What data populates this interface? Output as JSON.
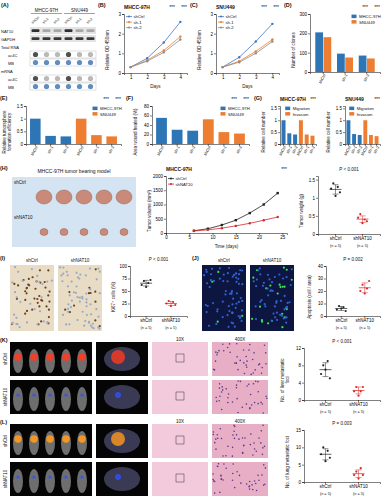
{
  "chart_data": [
    {
      "type": "line",
      "title": "MHCC-97H",
      "y_label": "Relative OD 450nm",
      "x_label": "Days",
      "x": [
        1,
        2,
        3,
        4
      ],
      "xlim": [
        0.6,
        4.4
      ],
      "xticks": [
        1,
        2,
        3,
        4
      ],
      "ylim": [
        0,
        3
      ],
      "yticks": [
        0,
        1,
        2,
        3
      ],
      "marker": "circle",
      "legend": "top-left",
      "annotations": [
        "***",
        "***"
      ],
      "series": [
        {
          "name": "shCtrl",
          "color": "#4472c4",
          "values": [
            0.3,
            0.75,
            1.55,
            2.6
          ]
        },
        {
          "name": "sh-1",
          "color": "#ed7d31",
          "values": [
            0.3,
            0.65,
            1.15,
            1.85
          ]
        },
        {
          "name": "sh-2",
          "color": "#8c8c8c",
          "values": [
            0.3,
            0.6,
            1.05,
            1.7
          ]
        }
      ]
    },
    {
      "type": "line",
      "title": "SNU449",
      "y_label": "Relative OD 450nm",
      "x_label": "Days",
      "x": [
        1,
        2,
        3,
        4
      ],
      "xlim": [
        0.6,
        4.4
      ],
      "xticks": [
        1,
        2,
        3,
        4
      ],
      "ylim": [
        0,
        3
      ],
      "yticks": [
        0,
        1,
        2,
        3
      ],
      "marker": "circle",
      "legend": "top-left",
      "annotations": [
        "***",
        "***"
      ],
      "series": [
        {
          "name": "shCtrl",
          "color": "#4472c4",
          "values": [
            0.3,
            0.8,
            1.6,
            2.5
          ]
        },
        {
          "name": "sh-1",
          "color": "#ed7d31",
          "values": [
            0.3,
            0.6,
            1.1,
            1.7
          ]
        },
        {
          "name": "sh-2",
          "color": "#8c8c8c",
          "values": [
            0.3,
            0.55,
            1.0,
            1.6
          ]
        }
      ]
    },
    {
      "type": "bar",
      "y_label": "Number of clones",
      "categories": [
        "shCtrl",
        "sh-1",
        "sh-2"
      ],
      "ylim": [
        0,
        300
      ],
      "yticks": [
        0,
        100,
        200,
        300
      ],
      "legend": "top-right",
      "annotations": [
        "***",
        "***"
      ],
      "series": [
        {
          "name": "MHCC-97H",
          "color": "#2e75b6",
          "values": [
            205,
            95,
            85
          ]
        },
        {
          "name": "SNU449",
          "color": "#ed7d31",
          "values": [
            180,
            75,
            70
          ]
        }
      ]
    },
    {
      "type": "bar",
      "y_label": "Relative tumorsphere formation efficiency",
      "categories": [
        "shCtrl",
        "sh-1",
        "sh-2",
        "shCtrl",
        "sh-1",
        "sh-2"
      ],
      "ylim": [
        0,
        1.5
      ],
      "yticks": [
        0,
        0.5,
        1,
        1.5
      ],
      "legend": "top-right",
      "annotations": [
        "***",
        "***"
      ],
      "series": [
        {
          "name": "MHCC-97H",
          "color": "#2e75b6",
          "values": [
            1,
            0.32,
            0.3,
            null,
            null,
            null
          ]
        },
        {
          "name": "SNU449",
          "color": "#ed7d31",
          "values": [
            null,
            null,
            null,
            1,
            0.35,
            0.3
          ]
        }
      ]
    },
    {
      "type": "bar",
      "y_label": "Area wound healed (%)",
      "categories": [
        "shCtrl",
        "sh-1",
        "sh-2",
        "shCtrl",
        "sh-1",
        "sh-2"
      ],
      "ylim": [
        0,
        80
      ],
      "yticks": [
        0,
        20,
        40,
        60,
        80
      ],
      "legend": "top-right",
      "annotations": [
        "***",
        "***"
      ],
      "series": [
        {
          "name": "MHCC-97H",
          "color": "#2e75b6",
          "values": [
            55,
            30,
            28,
            null,
            null,
            null
          ]
        },
        {
          "name": "SNU449",
          "color": "#ed7d31",
          "values": [
            null,
            null,
            null,
            52,
            25,
            22
          ]
        }
      ]
    },
    {
      "type": "bar",
      "title": "MHCC-97H",
      "y_label": "Relative cell number",
      "categories": [
        "shCtrl",
        "sh-1",
        "sh-2",
        "shCtrl",
        "sh-1",
        "sh-2"
      ],
      "ylim": [
        0,
        1.6
      ],
      "yticks": [
        0,
        0.5,
        1,
        1.5
      ],
      "legend": "top-right",
      "annotations": [
        "***"
      ],
      "series": [
        {
          "name": "Migration",
          "color": "#2e75b6",
          "values": [
            1,
            0.45,
            0.4,
            null,
            null,
            null
          ]
        },
        {
          "name": "Invasion",
          "color": "#ed7d31",
          "values": [
            null,
            null,
            null,
            1,
            0.4,
            0.35
          ]
        }
      ]
    },
    {
      "type": "bar",
      "title": "SNU449",
      "y_label": "Relative cell number",
      "categories": [
        "shCtrl",
        "sh-1",
        "sh-2",
        "shCtrl",
        "sh-1",
        "sh-2"
      ],
      "ylim": [
        0,
        1.6
      ],
      "yticks": [
        0,
        0.5,
        1,
        1.5
      ],
      "legend": "top-right",
      "annotations": [
        "***"
      ],
      "series": [
        {
          "name": "Migration",
          "color": "#2e75b6",
          "values": [
            1,
            0.42,
            0.38,
            null,
            null,
            null
          ]
        },
        {
          "name": "Invasion",
          "color": "#ed7d31",
          "values": [
            null,
            null,
            null,
            1,
            0.38,
            0.33
          ]
        }
      ]
    },
    {
      "type": "line",
      "title": "MHCC-97H",
      "y_label": "Tumor volume (mm³)",
      "x_label": "Time (days)",
      "x": [
        6,
        9,
        12,
        15,
        18,
        21,
        24
      ],
      "xlim": [
        0,
        26
      ],
      "xticks": [
        0,
        5,
        10,
        15,
        20,
        25
      ],
      "ylim": [
        0,
        2000
      ],
      "yticks": [
        0,
        500,
        1000,
        1500,
        2000
      ],
      "legend": "top-left",
      "annotations": [
        "***"
      ],
      "series": [
        {
          "name": "shCtrl",
          "color": "#222222",
          "marker": "square",
          "values": [
            80,
            150,
            280,
            450,
            700,
            1000,
            1400
          ]
        },
        {
          "name": "shNAT10",
          "color": "#d62728",
          "marker": "circle",
          "values": [
            70,
            110,
            170,
            250,
            340,
            450,
            560
          ]
        }
      ]
    },
    {
      "type": "dot",
      "y_label": "Tumor weight (g)",
      "annotation": "P < 0.001",
      "ylim": [
        0,
        1.6
      ],
      "yticks": [
        0,
        0.5,
        1,
        1.5
      ],
      "groups": [
        {
          "name": "shCtrl",
          "n_label": "(n = 5)",
          "color": "#222222",
          "values": [
            1.25,
            1.4,
            1.05,
            1.3,
            1.15
          ],
          "mean": 1.23,
          "sd": 0.13
        },
        {
          "name": "shNAT10",
          "n_label": "(n = 5)",
          "color": "#d62728",
          "values": [
            0.45,
            0.55,
            0.3,
            0.4,
            0.35
          ],
          "mean": 0.41,
          "sd": 0.09
        }
      ]
    },
    {
      "type": "dot",
      "y_label": "Ki67⁺ cells (%)",
      "annotation": "P < 0.001",
      "ylim": [
        0,
        100
      ],
      "yticks": [
        0,
        25,
        50,
        75,
        100
      ],
      "groups": [
        {
          "name": "shCtrl",
          "n_label": "(n = 5)",
          "color": "#222222",
          "values": [
            62,
            70,
            58,
            66,
            72
          ],
          "mean": 65.6,
          "sd": 5.6
        },
        {
          "name": "shNAT10",
          "n_label": "(n = 5)",
          "color": "#d62728",
          "values": [
            25,
            30,
            20,
            28,
            22
          ],
          "mean": 25,
          "sd": 4.1
        }
      ]
    },
    {
      "type": "dot",
      "y_label": "Apoptosis (cell / area)",
      "annotation": "P = 0.002",
      "ylim": [
        0,
        40
      ],
      "yticks": [
        0,
        10,
        20,
        30,
        40
      ],
      "groups": [
        {
          "name": "shCtrl",
          "n_label": "(n = 5)",
          "color": "#222222",
          "values": [
            5,
            8,
            6,
            7,
            4
          ],
          "mean": 6,
          "sd": 1.6
        },
        {
          "name": "shNAT10",
          "n_label": "(n = 5)",
          "color": "#d62728",
          "values": [
            20,
            25,
            18,
            22,
            28
          ],
          "mean": 22.6,
          "sd": 3.9
        }
      ]
    },
    {
      "type": "dot",
      "y_label": "No. of liver metastatic foci",
      "annotation": "P < 0.001",
      "ylim": [
        0,
        12
      ],
      "yticks": [
        0,
        4,
        8,
        12
      ],
      "groups": [
        {
          "name": "shCtrl",
          "n_label": "(n = 5)",
          "color": "#222222",
          "values": [
            6,
            8,
            7,
            9,
            5
          ],
          "mean": 7,
          "sd": 1.6
        },
        {
          "name": "shNAT10",
          "n_label": "(n = 5)",
          "color": "#d62728",
          "values": [
            2,
            3,
            1,
            2,
            3
          ],
          "mean": 2.2,
          "sd": 0.8
        }
      ]
    },
    {
      "type": "dot",
      "y_label": "No. of lung metastatic foci",
      "annotation": "P = 0.003",
      "ylim": [
        0,
        15
      ],
      "yticks": [
        0,
        5,
        10,
        15
      ],
      "groups": [
        {
          "name": "shCtrl",
          "n_label": "(n = 5)",
          "color": "#222222",
          "values": [
            8,
            10,
            6,
            9,
            7
          ],
          "mean": 8,
          "sd": 1.6
        },
        {
          "name": "shNAT10",
          "n_label": "(n = 5)",
          "color": "#d62728",
          "values": [
            2,
            3,
            1,
            4,
            2
          ],
          "mean": 2.4,
          "sd": 1.1
        }
      ]
    }
  ],
  "figure": {
    "panel_labels": [
      "(A)",
      "(B)",
      "(C)",
      "(D)",
      "(E)",
      "(F)",
      "(G)",
      "(H)",
      "(I)",
      "(J)",
      "(K)",
      "(L)"
    ],
    "blot": {
      "cell_lines": [
        "MHCC-97H",
        "SNU449"
      ],
      "lanes": [
        "shCtrl",
        "sh-1",
        "sh-2"
      ],
      "bands": [
        "NAT10",
        "GAPDH"
      ],
      "dot_blots": [
        {
          "label": "Total RNA",
          "rows": [
            "ac4C",
            "MB"
          ]
        },
        {
          "label": "mRNA",
          "rows": [
            "ac4C",
            "MB"
          ]
        }
      ]
    },
    "h_images": {
      "title": "MHCC-97H tumor bearing model",
      "rows": [
        "shCtrl",
        "shNAT10"
      ]
    },
    "i_images": {
      "labels": [
        "shCtrl",
        "shNAT10"
      ]
    },
    "j_images": {
      "labels": [
        "shCtrl",
        "shNAT10"
      ]
    },
    "k_images": {
      "rows": [
        "shCtrl",
        "shNAT10"
      ],
      "magnifications": [
        "10X",
        "400X"
      ]
    },
    "l_images": {
      "rows": [
        "shCtrl",
        "shNAT10"
      ],
      "magnifications": [
        "10X",
        "400X"
      ]
    }
  }
}
